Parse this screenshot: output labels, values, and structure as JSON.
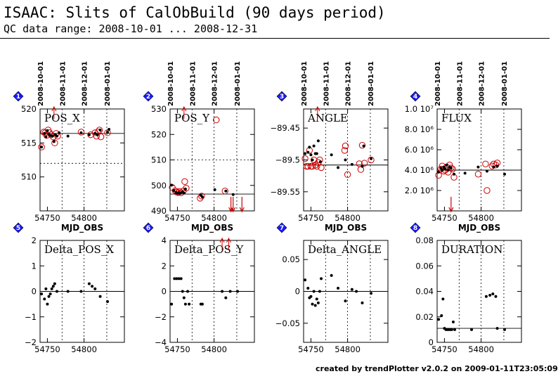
{
  "header": {
    "title": "ISAAC: Slits of CalObBuild (90 days period)",
    "subtitle": "QC data range: 2008-10-01 ... 2008-12-31"
  },
  "footer": {
    "text": "created by trendPlotter v2.0.2 on 2009-01-11T23:05:09"
  },
  "colors": {
    "accent": "#cc0000",
    "badge": "#1a1aff",
    "points": "#000000",
    "grid": "#000000"
  },
  "chart_data": [
    {
      "type": "scatter",
      "badge": "1",
      "title": "POS_X",
      "xlabel": "MJD_OBS",
      "xlim": [
        54740,
        54855
      ],
      "ylim": [
        505,
        520
      ],
      "yticks": [
        505,
        510,
        515,
        520
      ],
      "ytick_labels": [
        "",
        "510",
        "515",
        "520"
      ],
      "xticks": [
        54750,
        54800
      ],
      "xtick_labels": [
        "54750",
        "54800"
      ],
      "date_ticks": [
        {
          "x": 54740,
          "label": "2008-10-01"
        },
        {
          "x": 54770,
          "label": "2008-11-01"
        },
        {
          "x": 54800,
          "label": "2008-12-01"
        },
        {
          "x": 54831,
          "label": "2008-01-01"
        }
      ],
      "ref_line": 516.4,
      "thresholds": [
        512
      ],
      "points": [
        [
          54742,
          514.4
        ],
        [
          54746,
          516.4
        ],
        [
          54748,
          515.9
        ],
        [
          54750,
          516.8
        ],
        [
          54752,
          516.3
        ],
        [
          54754,
          516.1
        ],
        [
          54757,
          516.0
        ],
        [
          54759,
          515.2
        ],
        [
          54761,
          516.2
        ],
        [
          54763,
          516.0
        ],
        [
          54766,
          516.5
        ],
        [
          54778,
          516.0
        ],
        [
          54796,
          516.5
        ],
        [
          54807,
          516.2
        ],
        [
          54815,
          516.4
        ],
        [
          54818,
          516.2
        ],
        [
          54822,
          516.9
        ],
        [
          54832,
          516.6
        ],
        [
          54834,
          517.0
        ]
      ],
      "outliers": [
        [
          54742,
          514.4
        ],
        [
          54745,
          516.6
        ],
        [
          54747,
          516.5
        ],
        [
          54749,
          516.1
        ],
        [
          54751,
          516.9
        ],
        [
          54753,
          516.5
        ],
        [
          54755,
          516.2
        ],
        [
          54758,
          515.9
        ],
        [
          54760,
          515.0
        ],
        [
          54762,
          516.4
        ],
        [
          54764,
          516.0
        ],
        [
          54796,
          516.6
        ],
        [
          54809,
          516.2
        ],
        [
          54815,
          516.5
        ],
        [
          54817,
          516.0
        ],
        [
          54819,
          516.6
        ],
        [
          54821,
          516.9
        ],
        [
          54823,
          515.9
        ],
        [
          54832,
          516.5
        ]
      ],
      "arrows_up": [
        54759
      ],
      "arrows_down": []
    },
    {
      "type": "scatter",
      "badge": "2",
      "title": "POS_Y",
      "xlabel": "MJD_OBS",
      "xlim": [
        54740,
        54855
      ],
      "ylim": [
        490,
        530
      ],
      "yticks": [
        490,
        500,
        510,
        520,
        530
      ],
      "ytick_labels": [
        "490",
        "500",
        "510",
        "520",
        "530"
      ],
      "xticks": [
        54750,
        54800
      ],
      "xtick_labels": [
        "54750",
        "54800"
      ],
      "date_ticks": [
        {
          "x": 54740,
          "label": "2008-10-01"
        },
        {
          "x": 54770,
          "label": "2008-11-01"
        },
        {
          "x": 54800,
          "label": "2008-12-01"
        },
        {
          "x": 54831,
          "label": "2008-01-01"
        }
      ],
      "ref_line": 496.6,
      "thresholds": [
        510
      ],
      "points": [
        [
          54742,
          500.1
        ],
        [
          54745,
          498.0
        ],
        [
          54748,
          497.2
        ],
        [
          54750,
          497.0
        ],
        [
          54752,
          497.1
        ],
        [
          54754,
          496.9
        ],
        [
          54757,
          497.5
        ],
        [
          54759,
          497.0
        ],
        [
          54761,
          498.6
        ],
        [
          54782,
          496.1
        ],
        [
          54784,
          495.5
        ],
        [
          54801,
          498.3
        ],
        [
          54816,
          497.8
        ],
        [
          54826,
          496.4
        ]
      ],
      "outliers": [
        [
          54743,
          499.2
        ],
        [
          54747,
          497.9
        ],
        [
          54749,
          497.4
        ],
        [
          54751,
          497.2
        ],
        [
          54753,
          497.6
        ],
        [
          54755,
          497.1
        ],
        [
          54758,
          497.8
        ],
        [
          54760,
          501.5
        ],
        [
          54762,
          498.9
        ],
        [
          54781,
          495.0
        ],
        [
          54783,
          495.8
        ],
        [
          54803,
          525.7
        ],
        [
          54815,
          497.8
        ]
      ],
      "arrows_up": [
        54759
      ],
      "arrows_down": [
        54823,
        54826,
        54838
      ]
    },
    {
      "type": "scatter",
      "badge": "3",
      "title": "ANGLE",
      "xlabel": "MJD_OBS",
      "xlim": [
        54740,
        54855
      ],
      "ylim": [
        -89.58,
        -89.42
      ],
      "yticks": [
        -89.55,
        -89.5,
        -89.45
      ],
      "ytick_labels": [
        "−89.55",
        "−89.5",
        "−89.45"
      ],
      "xticks": [
        54750,
        54800
      ],
      "xtick_labels": [
        "54750",
        "54800"
      ],
      "date_ticks": [
        {
          "x": 54740,
          "label": "2008-10-01"
        },
        {
          "x": 54770,
          "label": "2008-11-01"
        },
        {
          "x": 54800,
          "label": "2008-12-01"
        },
        {
          "x": 54831,
          "label": "2008-01-01"
        }
      ],
      "ref_line": -89.508,
      "points": [
        [
          54742,
          -89.49
        ],
        [
          54746,
          -89.488
        ],
        [
          54748,
          -89.48
        ],
        [
          54750,
          -89.492
        ],
        [
          54752,
          -89.5
        ],
        [
          54754,
          -89.478
        ],
        [
          54756,
          -89.49
        ],
        [
          54758,
          -89.49
        ],
        [
          54760,
          -89.47
        ],
        [
          54763,
          -89.503
        ],
        [
          54778,
          -89.492
        ],
        [
          54787,
          -89.512
        ],
        [
          54797,
          -89.5
        ],
        [
          54806,
          -89.507
        ],
        [
          54820,
          -89.51
        ],
        [
          54822,
          -89.478
        ],
        [
          54832,
          -89.498
        ]
      ],
      "outliers": [
        [
          54742,
          -89.498
        ],
        [
          54744,
          -89.51
        ],
        [
          54746,
          -89.51
        ],
        [
          54748,
          -89.485
        ],
        [
          54750,
          -89.51
        ],
        [
          54752,
          -89.51
        ],
        [
          54754,
          -89.5
        ],
        [
          54756,
          -89.508
        ],
        [
          54758,
          -89.51
        ],
        [
          54760,
          -89.504
        ],
        [
          54762,
          -89.5
        ],
        [
          54764,
          -89.512
        ],
        [
          54796,
          -89.485
        ],
        [
          54797,
          -89.478
        ],
        [
          54800,
          -89.523
        ],
        [
          54816,
          -89.506
        ],
        [
          54818,
          -89.515
        ],
        [
          54820,
          -89.477
        ],
        [
          54823,
          -89.505
        ],
        [
          54832,
          -89.5
        ]
      ],
      "arrows_up": [
        54759
      ],
      "arrows_down": []
    },
    {
      "type": "scatter",
      "badge": "4",
      "title": "FLUX",
      "xlabel": "MJD_OBS",
      "xlim": [
        54740,
        54855
      ],
      "ylim": [
        0,
        10000000
      ],
      "yticks": [
        2000000,
        4000000,
        6000000,
        8000000,
        10000000
      ],
      "ytick_labels": [
        "2.0 10⁶",
        "4.0 10⁶",
        "6.0 10⁶",
        "8.0 10⁶",
        "1.0 10⁷"
      ],
      "xticks": [
        54750,
        54800
      ],
      "xtick_labels": [
        "54750",
        "54800"
      ],
      "date_ticks": [
        {
          "x": 54740,
          "label": "2008-10-01"
        },
        {
          "x": 54770,
          "label": "2008-11-01"
        },
        {
          "x": 54800,
          "label": "2008-12-01"
        },
        {
          "x": 54831,
          "label": "2008-01-01"
        }
      ],
      "ref_line": 4000000,
      "points": [
        [
          54742,
          3800000
        ],
        [
          54745,
          4200000
        ],
        [
          54747,
          4000000
        ],
        [
          54749,
          4300000
        ],
        [
          54751,
          4100000
        ],
        [
          54753,
          4500000
        ],
        [
          54755,
          4000000
        ],
        [
          54757,
          4300000
        ],
        [
          54759,
          4200000
        ],
        [
          54763,
          3600000
        ],
        [
          54778,
          3700000
        ],
        [
          54796,
          4300000
        ],
        [
          54808,
          3900000
        ],
        [
          54817,
          4300000
        ],
        [
          54822,
          4400000
        ],
        [
          54832,
          3600000
        ]
      ],
      "outliers": [
        [
          54742,
          3500000
        ],
        [
          54745,
          4100000
        ],
        [
          54747,
          4400000
        ],
        [
          54749,
          3900000
        ],
        [
          54751,
          4000000
        ],
        [
          54753,
          4300000
        ],
        [
          54755,
          3800000
        ],
        [
          54757,
          4500000
        ],
        [
          54759,
          4200000
        ],
        [
          54761,
          4100000
        ],
        [
          54763,
          3300000
        ],
        [
          54796,
          3600000
        ],
        [
          54806,
          4600000
        ],
        [
          54808,
          2000000
        ],
        [
          54815,
          4400000
        ],
        [
          54817,
          4600000
        ],
        [
          54820,
          4500000
        ],
        [
          54822,
          4700000
        ]
      ],
      "arrows_up": [],
      "arrows_down": [
        54759
      ]
    },
    {
      "type": "scatter",
      "badge": "5",
      "title": "Delta_POS_X",
      "xlabel": "",
      "xlim": [
        54740,
        54855
      ],
      "ylim": [
        -2,
        2
      ],
      "yticks": [
        -2,
        -1,
        0,
        1,
        2
      ],
      "ytick_labels": [
        "−2",
        "−1",
        "0",
        "1",
        "2"
      ],
      "xticks": [
        54750,
        54800
      ],
      "xtick_labels": [
        "54750",
        "54800"
      ],
      "date_ticks": [
        {
          "x": 54770
        },
        {
          "x": 54800
        },
        {
          "x": 54831
        }
      ],
      "ref_line": 0,
      "points": [
        [
          54742,
          -0.1
        ],
        [
          54746,
          -0.3
        ],
        [
          54748,
          0.1
        ],
        [
          54750,
          -0.5
        ],
        [
          54752,
          -0.2
        ],
        [
          54754,
          -0.1
        ],
        [
          54756,
          0.1
        ],
        [
          54758,
          0.2
        ],
        [
          54760,
          0.3
        ],
        [
          54763,
          0.0
        ],
        [
          54778,
          0.0
        ],
        [
          54796,
          0.0
        ],
        [
          54807,
          0.3
        ],
        [
          54811,
          0.2
        ],
        [
          54815,
          0.1
        ],
        [
          54822,
          -0.2
        ],
        [
          54832,
          -0.4
        ]
      ],
      "outliers": [],
      "arrows_up": [],
      "arrows_down": []
    },
    {
      "type": "scatter",
      "badge": "6",
      "title": "Delta_POS_Y",
      "xlabel": "",
      "xlim": [
        54740,
        54855
      ],
      "ylim": [
        -4,
        4
      ],
      "yticks": [
        -4,
        -2,
        0,
        2,
        4
      ],
      "ytick_labels": [
        "−4",
        "−2",
        "0",
        "2",
        "4"
      ],
      "xticks": [
        54750,
        54800
      ],
      "xtick_labels": [
        "54750",
        "54800"
      ],
      "date_ticks": [
        {
          "x": 54770
        },
        {
          "x": 54800
        },
        {
          "x": 54831
        }
      ],
      "ref_line": 0,
      "points": [
        [
          54742,
          -1.0
        ],
        [
          54746,
          1.0
        ],
        [
          54749,
          1.0
        ],
        [
          54752,
          1.0
        ],
        [
          54755,
          1.0
        ],
        [
          54757,
          0.0
        ],
        [
          54759,
          -0.5
        ],
        [
          54761,
          -1.0
        ],
        [
          54764,
          0.0
        ],
        [
          54766,
          -1.0
        ],
        [
          54782,
          -1.0
        ],
        [
          54784,
          -1.0
        ],
        [
          54811,
          0.0
        ],
        [
          54816,
          -0.5
        ],
        [
          54822,
          0.0
        ],
        [
          54832,
          0.0
        ]
      ],
      "outliers": [],
      "arrows_up": [
        54811,
        54820
      ],
      "arrows_down": []
    },
    {
      "type": "scatter",
      "badge": "7",
      "title": "Delta_ANGLE",
      "xlabel": "",
      "xlim": [
        54740,
        54855
      ],
      "ylim": [
        -0.08,
        0.08
      ],
      "yticks": [
        -0.05,
        0,
        0.05
      ],
      "ytick_labels": [
        "−0.05",
        "0",
        "0.05"
      ],
      "xticks": [
        54750,
        54800
      ],
      "xtick_labels": [
        "54750",
        "54800"
      ],
      "date_ticks": [
        {
          "x": 54770
        },
        {
          "x": 54800
        },
        {
          "x": 54831
        }
      ],
      "ref_line": 0,
      "points": [
        [
          54742,
          0.018
        ],
        [
          54746,
          0.005
        ],
        [
          54748,
          -0.01
        ],
        [
          54750,
          -0.008
        ],
        [
          54752,
          -0.02
        ],
        [
          54754,
          0.0
        ],
        [
          54756,
          -0.022
        ],
        [
          54758,
          -0.012
        ],
        [
          54760,
          -0.018
        ],
        [
          54762,
          0.0
        ],
        [
          54764,
          0.02
        ],
        [
          54778,
          0.025
        ],
        [
          54787,
          0.005
        ],
        [
          54797,
          -0.015
        ],
        [
          54806,
          0.003
        ],
        [
          54812,
          0.0
        ],
        [
          54820,
          -0.018
        ],
        [
          54832,
          -0.003
        ]
      ],
      "outliers": [],
      "arrows_up": [],
      "arrows_down": []
    },
    {
      "type": "scatter",
      "badge": "8",
      "title": "DURATION",
      "xlabel": "",
      "xlim": [
        54740,
        54855
      ],
      "ylim": [
        0,
        0.08
      ],
      "yticks": [
        0,
        0.02,
        0.04,
        0.06,
        0.08
      ],
      "ytick_labels": [
        "0",
        "0.02",
        "0.04",
        "0.06",
        "0.08"
      ],
      "xticks": [
        54750,
        54800
      ],
      "xtick_labels": [
        "54750",
        "54800"
      ],
      "date_ticks": [
        {
          "x": 54770
        },
        {
          "x": 54800
        },
        {
          "x": 54831
        }
      ],
      "ref_line": 0.011,
      "points": [
        [
          54742,
          0.018
        ],
        [
          54746,
          0.021
        ],
        [
          54748,
          0.034
        ],
        [
          54750,
          0.011
        ],
        [
          54752,
          0.01
        ],
        [
          54754,
          0.01
        ],
        [
          54756,
          0.01
        ],
        [
          54758,
          0.01
        ],
        [
          54760,
          0.01
        ],
        [
          54762,
          0.016
        ],
        [
          54764,
          0.01
        ],
        [
          54787,
          0.01
        ],
        [
          54807,
          0.036
        ],
        [
          54812,
          0.037
        ],
        [
          54816,
          0.038
        ],
        [
          54820,
          0.036
        ],
        [
          54822,
          0.011
        ],
        [
          54832,
          0.01
        ]
      ],
      "outliers": [],
      "arrows_up": [],
      "arrows_down": []
    }
  ]
}
